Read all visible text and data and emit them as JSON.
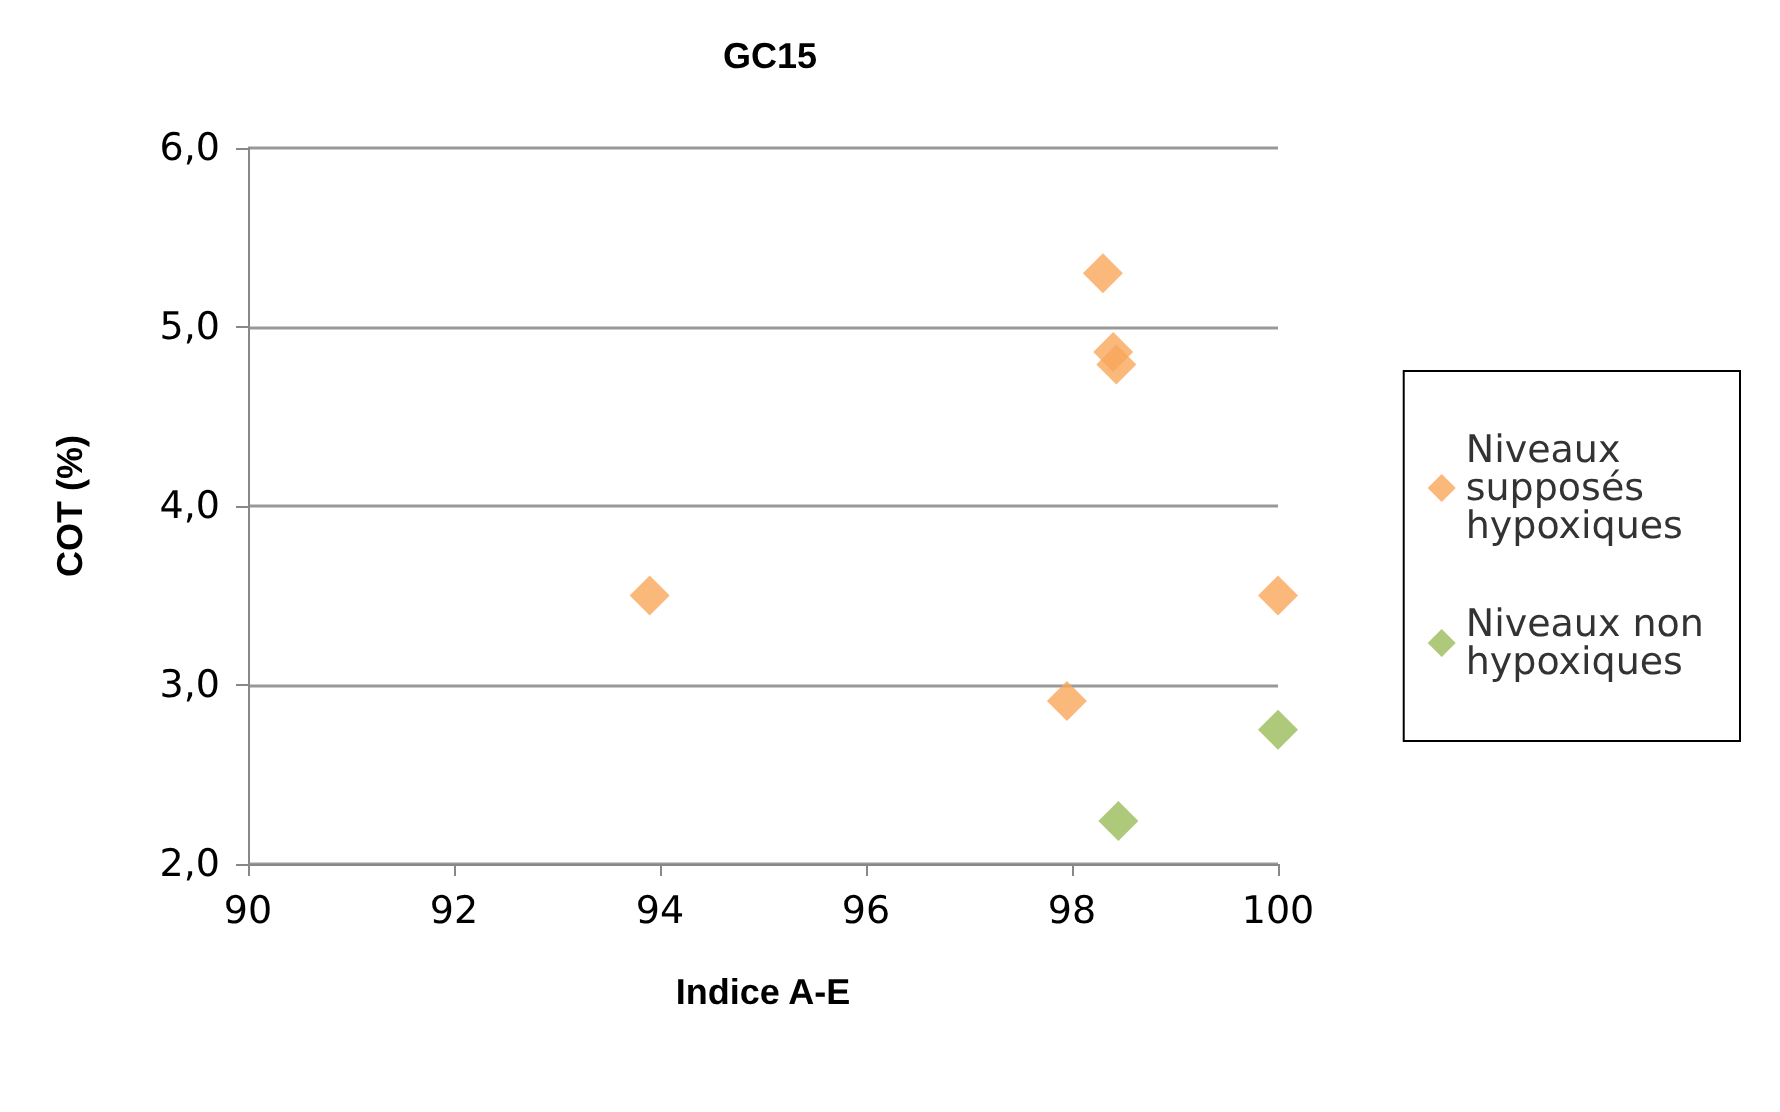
{
  "chart_data": {
    "type": "scatter",
    "title": "GC15",
    "xlabel": "Indice A-E",
    "ylabel": "COT (%)",
    "series": [
      {
        "name": "Niveaux supposés hypoxiques",
        "color": "#f9a65a",
        "x": [
          98.3,
          98.4,
          98.43,
          93.9,
          97.95,
          100
        ],
        "values": [
          5.3,
          4.86,
          4.79,
          3.5,
          2.91,
          3.5
        ]
      },
      {
        "name": "Niveaux non hypoxiques",
        "color": "#9bbb59",
        "x": [
          100,
          98.45
        ],
        "values": [
          2.75,
          2.24
        ]
      }
    ],
    "xlim": [
      90,
      100
    ],
    "xticks": [
      90,
      92,
      94,
      96,
      98,
      100
    ],
    "ylim": [
      2,
      6
    ],
    "yticks": [
      {
        "value": 2,
        "label": "2,0"
      },
      {
        "value": 3,
        "label": "3,0"
      },
      {
        "value": 4,
        "label": "4,0"
      },
      {
        "value": 5,
        "label": "5,0"
      },
      {
        "value": 6,
        "label": "6,0"
      }
    ],
    "grid": "y",
    "legend": "right",
    "marker": "diamond"
  }
}
